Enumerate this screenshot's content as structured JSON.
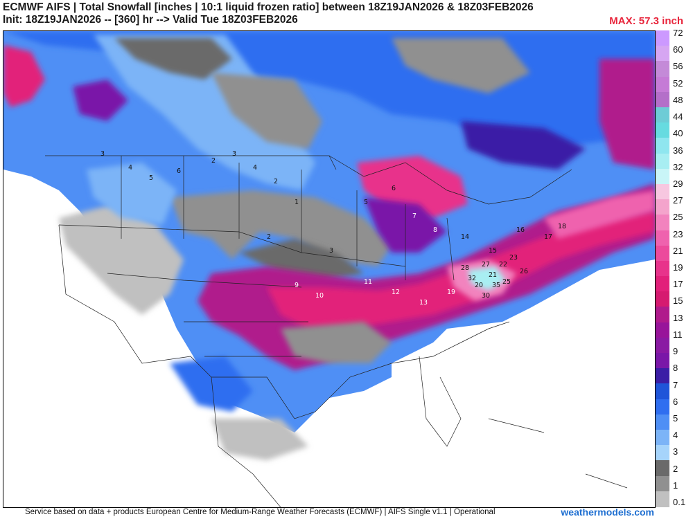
{
  "header": {
    "title": "ECMWF AIFS | Total Snowfall [inches | 10:1 liquid frozen ratio] between 18Z19JAN2026 & 18Z03FEB2026",
    "subtitle": "Init: 18Z19JAN2026 -- [360] hr --> Valid Tue 18Z03FEB2026",
    "max_label": "MAX: 57.3 inch"
  },
  "colorbar": {
    "levels": [
      "72",
      "60",
      "56",
      "52",
      "48",
      "44",
      "40",
      "36",
      "32",
      "29",
      "27",
      "25",
      "23",
      "21",
      "19",
      "17",
      "15",
      "13",
      "11",
      "9",
      "8",
      "7",
      "6",
      "5",
      "4",
      "3",
      "2",
      "1",
      "0.1"
    ],
    "colors": [
      "#cc99ff",
      "#d6a6f2",
      "#c48ad8",
      "#c57bd6",
      "#b46fc9",
      "#6dccd6",
      "#66dbe0",
      "#8fe6ef",
      "#a8eef2",
      "#c9f5f7",
      "#f7c7e0",
      "#f4a4cc",
      "#f283be",
      "#ef62ae",
      "#ec4a9c",
      "#e8338b",
      "#e2207a",
      "#d61a70",
      "#b01a8c",
      "#98149a",
      "#8a1aa3",
      "#7a17a8",
      "#3b1ea6",
      "#1f55d9",
      "#2f6ef0",
      "#4f8ff5",
      "#7cb4f7",
      "#a6d4fb",
      "#6a6a6a",
      "#909090",
      "#c0c0c0"
    ]
  },
  "map": {
    "region": "Contiguous United States, southern Canada and northern Mexico",
    "snow_labels": [
      "3",
      "4",
      "5",
      "6",
      "2",
      "3",
      "4",
      "2",
      "1",
      "2",
      "3",
      "5",
      "6",
      "7",
      "8",
      "9",
      "10",
      "11",
      "12",
      "13",
      "14",
      "15",
      "16",
      "17",
      "18",
      "19",
      "20",
      "21",
      "22",
      "23",
      "25",
      "26",
      "27",
      "28",
      "30",
      "32",
      "35"
    ]
  },
  "footer": {
    "credit": "Service based on data + products European Centre for Medium-Range Weather Forecasts (ECMWF) | AIFS Single v1.1 | Operational",
    "brand": "weathermodels.com"
  }
}
